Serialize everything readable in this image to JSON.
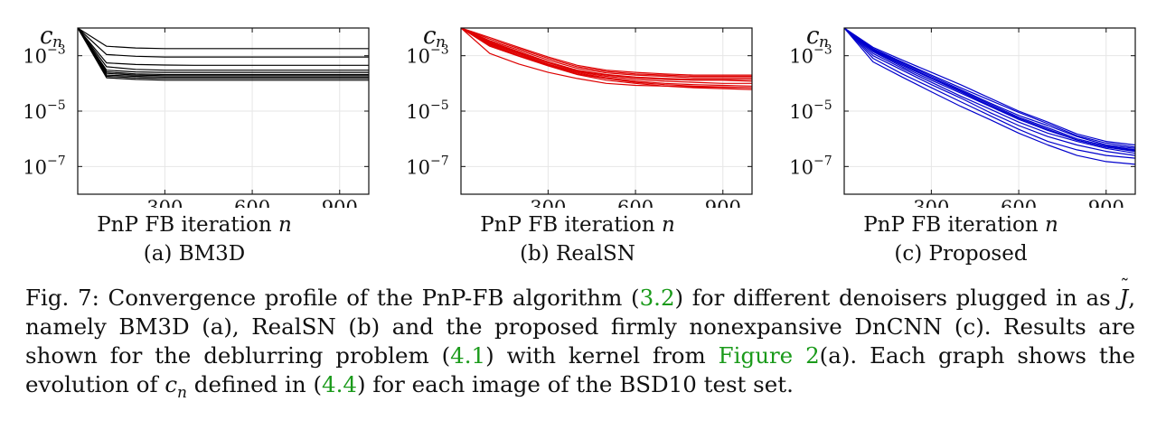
{
  "figure": {
    "panels": [
      {
        "id": "a",
        "subcaption": "(a) BM3D",
        "color": "#000000",
        "ylabel": "c",
        "ylabel_sub": "n",
        "xlabel": "PnP FB iteration",
        "xlabel_var": "n"
      },
      {
        "id": "b",
        "subcaption": "(b) RealSN",
        "color": "#dd0000",
        "ylabel": "c",
        "ylabel_sub": "n",
        "xlabel": "PnP FB iteration",
        "xlabel_var": "n"
      },
      {
        "id": "c",
        "subcaption": "(c) Proposed",
        "color": "#0000cc",
        "ylabel": "c",
        "ylabel_sub": "n",
        "xlabel": "PnP FB iteration",
        "xlabel_var": "n"
      }
    ],
    "caption": {
      "label": "Fig. 7:",
      "t1": " Convergence profile of the PnP-FB algorithm (",
      "ref1": "3.2",
      "t2": ") for different denoisers plugged in as ",
      "jsym": "J",
      "t3": ", namely BM3D (a), RealSN (b) and the proposed firmly nonexpansive DnCNN (c). Results are shown for the deblurring problem (",
      "ref2": "4.1",
      "t4": ") with kernel from ",
      "ref3": "Figure 2",
      "t5": "(a). Each graph shows the evolution of ",
      "cn": "c",
      "cn_sub": "n",
      "t6": " defined in (",
      "ref4": "4.4",
      "t7": ") for each image of the BSD10 test set."
    }
  },
  "chart_data": [
    {
      "type": "line",
      "title": "",
      "subcaption": "(a) BM3D",
      "xlabel": "PnP FB iteration n",
      "ylabel": "c_n",
      "yscale": "log",
      "xlim": [
        1,
        1000
      ],
      "ylim": [
        1e-08,
        0.01
      ],
      "xticks": [
        300,
        600,
        900
      ],
      "yticks": [
        0.001,
        1e-05,
        1e-07
      ],
      "ytick_labels": [
        "10^-3",
        "10^-5",
        "10^-7"
      ],
      "grid": true,
      "x": [
        1,
        100,
        200,
        300,
        400,
        500,
        600,
        700,
        800,
        900,
        1000
      ],
      "series": [
        {
          "values": [
            0.01,
            0.0022,
            0.0019,
            0.0018,
            0.0018,
            0.0018,
            0.0018,
            0.0018,
            0.0018,
            0.0018,
            0.0018
          ]
        },
        {
          "values": [
            0.01,
            0.0011,
            0.00095,
            0.0009,
            0.0009,
            0.0009,
            0.0009,
            0.0009,
            0.0009,
            0.0009,
            0.0009
          ]
        },
        {
          "values": [
            0.01,
            0.00055,
            0.00048,
            0.00046,
            0.00045,
            0.00045,
            0.00045,
            0.00045,
            0.00045,
            0.00045,
            0.00045
          ]
        },
        {
          "values": [
            0.01,
            0.0004,
            0.00032,
            0.0003,
            0.0003,
            0.0003,
            0.0003,
            0.0003,
            0.0003,
            0.0003,
            0.0003
          ]
        },
        {
          "values": [
            0.01,
            0.0003,
            0.00026,
            0.00025,
            0.00025,
            0.00025,
            0.00025,
            0.00025,
            0.00025,
            0.00025,
            0.00025
          ]
        },
        {
          "values": [
            0.01,
            0.00026,
            0.00022,
            0.00021,
            0.00021,
            0.00021,
            0.00021,
            0.00021,
            0.00021,
            0.00021,
            0.00021
          ]
        },
        {
          "values": [
            0.01,
            0.00023,
            0.0002,
            0.00019,
            0.00019,
            0.00019,
            0.00019,
            0.00019,
            0.00019,
            0.00019,
            0.00019
          ]
        },
        {
          "values": [
            0.01,
            0.0002,
            0.00018,
            0.00017,
            0.00017,
            0.00017,
            0.00017,
            0.00017,
            0.00017,
            0.00017,
            0.00017
          ]
        },
        {
          "values": [
            0.01,
            0.00018,
            0.00016,
            0.00015,
            0.00015,
            0.00015,
            0.00015,
            0.00015,
            0.00015,
            0.00015,
            0.00015
          ]
        },
        {
          "values": [
            0.01,
            0.00016,
            0.00014,
            0.00013,
            0.00013,
            0.00013,
            0.00013,
            0.00013,
            0.00013,
            0.00013,
            0.00013
          ]
        }
      ]
    },
    {
      "type": "line",
      "title": "",
      "subcaption": "(b) RealSN",
      "xlabel": "PnP FB iteration n",
      "ylabel": "c_n",
      "yscale": "log",
      "xlim": [
        1,
        1000
      ],
      "ylim": [
        1e-08,
        0.01
      ],
      "xticks": [
        300,
        600,
        900
      ],
      "yticks": [
        0.001,
        1e-05,
        1e-07
      ],
      "ytick_labels": [
        "10^-3",
        "10^-5",
        "10^-7"
      ],
      "grid": true,
      "x": [
        1,
        100,
        200,
        300,
        400,
        500,
        600,
        700,
        800,
        900,
        1000
      ],
      "series": [
        {
          "values": [
            0.01,
            0.0045,
            0.002,
            0.0009,
            0.00045,
            0.0003,
            0.00025,
            0.00022,
            0.0002,
            0.0002,
            0.0002
          ]
        },
        {
          "values": [
            0.01,
            0.004,
            0.0018,
            0.0008,
            0.0004,
            0.00027,
            0.00022,
            0.0002,
            0.00018,
            0.00018,
            0.00018
          ]
        },
        {
          "values": [
            0.01,
            0.0035,
            0.0016,
            0.0007,
            0.00035,
            0.00024,
            0.0002,
            0.00018,
            0.00016,
            0.00016,
            0.00016
          ]
        },
        {
          "values": [
            0.01,
            0.0032,
            0.0014,
            0.0006,
            0.0003,
            0.00021,
            0.00017,
            0.00015,
            0.00014,
            0.00014,
            0.00014
          ]
        },
        {
          "values": [
            0.01,
            0.003,
            0.0013,
            0.00055,
            0.00028,
            0.0002,
            0.00016,
            0.00014,
            0.00013,
            0.00013,
            0.00012
          ]
        },
        {
          "values": [
            0.01,
            0.0028,
            0.0012,
            0.0005,
            0.00026,
            0.00018,
            0.00014,
            0.00012,
            0.00011,
            0.0001,
            0.0001
          ]
        },
        {
          "values": [
            0.01,
            0.0026,
            0.0011,
            0.00048,
            0.00024,
            0.00016,
            0.00012,
            0.0001,
            9e-05,
            8.5e-05,
            8e-05
          ]
        },
        {
          "values": [
            0.01,
            0.0024,
            0.001,
            0.00045,
            0.00022,
            0.00015,
            0.00011,
            9e-05,
            8e-05,
            7.5e-05,
            7e-05
          ]
        },
        {
          "values": [
            0.01,
            0.0022,
            0.00095,
            0.00043,
            0.00021,
            0.00013,
            0.0001,
            8e-05,
            7e-05,
            6.5e-05,
            6e-05
          ]
        },
        {
          "values": [
            0.01,
            0.0012,
            0.0005,
            0.00025,
            0.00015,
            0.0001,
            8.5e-05,
            8e-05,
            7.5e-05,
            7.2e-05,
            7e-05
          ]
        }
      ]
    },
    {
      "type": "line",
      "title": "",
      "subcaption": "(c) Proposed",
      "xlabel": "PnP FB iteration n",
      "ylabel": "c_n",
      "yscale": "log",
      "xlim": [
        1,
        1000
      ],
      "ylim": [
        1e-08,
        0.01
      ],
      "xticks": [
        300,
        600,
        900
      ],
      "yticks": [
        0.001,
        1e-05,
        1e-07
      ],
      "ytick_labels": [
        "10^-3",
        "10^-5",
        "10^-7"
      ],
      "grid": true,
      "x": [
        1,
        100,
        200,
        300,
        400,
        500,
        600,
        700,
        800,
        900,
        1000
      ],
      "series": [
        {
          "values": [
            0.01,
            0.002,
            0.0007,
            0.00025,
            9e-05,
            3e-05,
            1e-05,
            4e-06,
            1.5e-06,
            8e-07,
            6e-07
          ]
        },
        {
          "values": [
            0.01,
            0.0018,
            0.0006,
            0.0002,
            7e-05,
            2.5e-05,
            9e-06,
            3.5e-06,
            1.3e-06,
            7e-07,
            5e-07
          ]
        },
        {
          "values": [
            0.01,
            0.0017,
            0.00055,
            0.00018,
            6e-05,
            2e-05,
            7e-06,
            3e-06,
            1.2e-06,
            6e-07,
            4.5e-07
          ]
        },
        {
          "values": [
            0.01,
            0.0016,
            0.0005,
            0.00016,
            5.5e-05,
            1.8e-05,
            6e-06,
            2.5e-06,
            1e-06,
            5.5e-07,
            4e-07
          ]
        },
        {
          "values": [
            0.01,
            0.0015,
            0.00045,
            0.00015,
            5e-05,
            1.6e-05,
            5.5e-06,
            2.2e-06,
            9e-07,
            5e-07,
            3.8e-07
          ]
        },
        {
          "values": [
            0.01,
            0.0014,
            0.0004,
            0.00013,
            4.5e-05,
            1.5e-05,
            5e-06,
            2e-06,
            9e-07,
            5e-07,
            3.5e-07
          ]
        },
        {
          "values": [
            0.01,
            0.0012,
            0.00035,
            0.00011,
            3.5e-05,
            1.2e-05,
            4e-06,
            1.6e-06,
            8e-07,
            4.5e-07,
            3e-07
          ]
        },
        {
          "values": [
            0.01,
            0.001,
            0.0003,
            9e-05,
            3e-05,
            9e-06,
            3e-06,
            1.2e-06,
            6e-07,
            3.5e-07,
            2.5e-07
          ]
        },
        {
          "values": [
            0.01,
            0.0008,
            0.00022,
            7e-05,
            2.2e-05,
            7e-06,
            2.2e-06,
            8e-07,
            4e-07,
            2.5e-07,
            2e-07
          ]
        },
        {
          "values": [
            0.01,
            0.0006,
            0.00017,
            5e-05,
            1.5e-05,
            5e-06,
            1.6e-06,
            6e-07,
            2.5e-07,
            1.5e-07,
            1.2e-07
          ]
        }
      ]
    }
  ]
}
